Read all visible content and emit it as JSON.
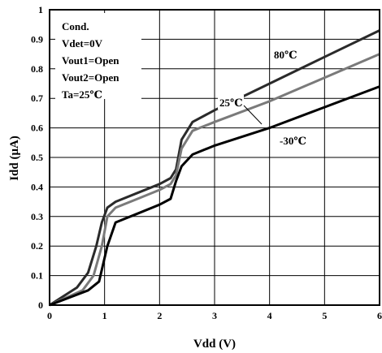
{
  "chart_data": {
    "type": "line",
    "title": "",
    "xlabel": "Vdd (V)",
    "ylabel": "Idd (μA)",
    "xlim": [
      0,
      6
    ],
    "ylim": [
      0,
      1
    ],
    "xticks": [
      0,
      1,
      2,
      3,
      4,
      5,
      6
    ],
    "yticks": [
      0,
      0.1,
      0.2,
      0.3,
      0.4,
      0.5,
      0.6,
      0.7,
      0.8,
      0.9,
      1
    ],
    "xtick_labels": [
      "0",
      "1",
      "2",
      "3",
      "4",
      "5",
      "6"
    ],
    "ytick_labels": [
      "0",
      "0.1",
      "0.2",
      "0.3",
      "0.4",
      "0.5",
      "0.6",
      "0.7",
      "0.8",
      "0.9",
      "1"
    ],
    "grid": true,
    "conditions": [
      "Cond.",
      "Vdet=0V",
      "Vout1=Open",
      "Vout2=Open",
      "Ta=25℃"
    ],
    "series": [
      {
        "name": "80℃",
        "color": "#2a2a2a",
        "x": [
          0,
          0.5,
          0.7,
          0.85,
          0.95,
          1.05,
          1.2,
          1.6,
          2.0,
          2.2,
          2.3,
          2.4,
          2.6,
          3.0,
          4.0,
          5.0,
          6.0
        ],
        "y": [
          0,
          0.06,
          0.11,
          0.2,
          0.28,
          0.33,
          0.35,
          0.38,
          0.41,
          0.43,
          0.46,
          0.56,
          0.62,
          0.66,
          0.75,
          0.84,
          0.93
        ]
      },
      {
        "name": "25℃",
        "color": "#7a7a7a",
        "x": [
          0,
          0.6,
          0.8,
          0.95,
          1.05,
          1.2,
          1.6,
          2.0,
          2.2,
          2.3,
          2.4,
          2.6,
          3.0,
          4.0,
          5.0,
          6.0
        ],
        "y": [
          0,
          0.05,
          0.1,
          0.2,
          0.3,
          0.33,
          0.36,
          0.39,
          0.41,
          0.44,
          0.53,
          0.59,
          0.62,
          0.69,
          0.77,
          0.85
        ]
      },
      {
        "name": "-30℃",
        "color": "#000000",
        "x": [
          0,
          0.7,
          0.9,
          1.05,
          1.2,
          1.6,
          2.0,
          2.2,
          2.3,
          2.4,
          2.6,
          3.0,
          4.0,
          5.0,
          6.0
        ],
        "y": [
          0,
          0.05,
          0.08,
          0.2,
          0.28,
          0.31,
          0.34,
          0.36,
          0.42,
          0.47,
          0.51,
          0.54,
          0.6,
          0.67,
          0.74
        ]
      }
    ]
  }
}
